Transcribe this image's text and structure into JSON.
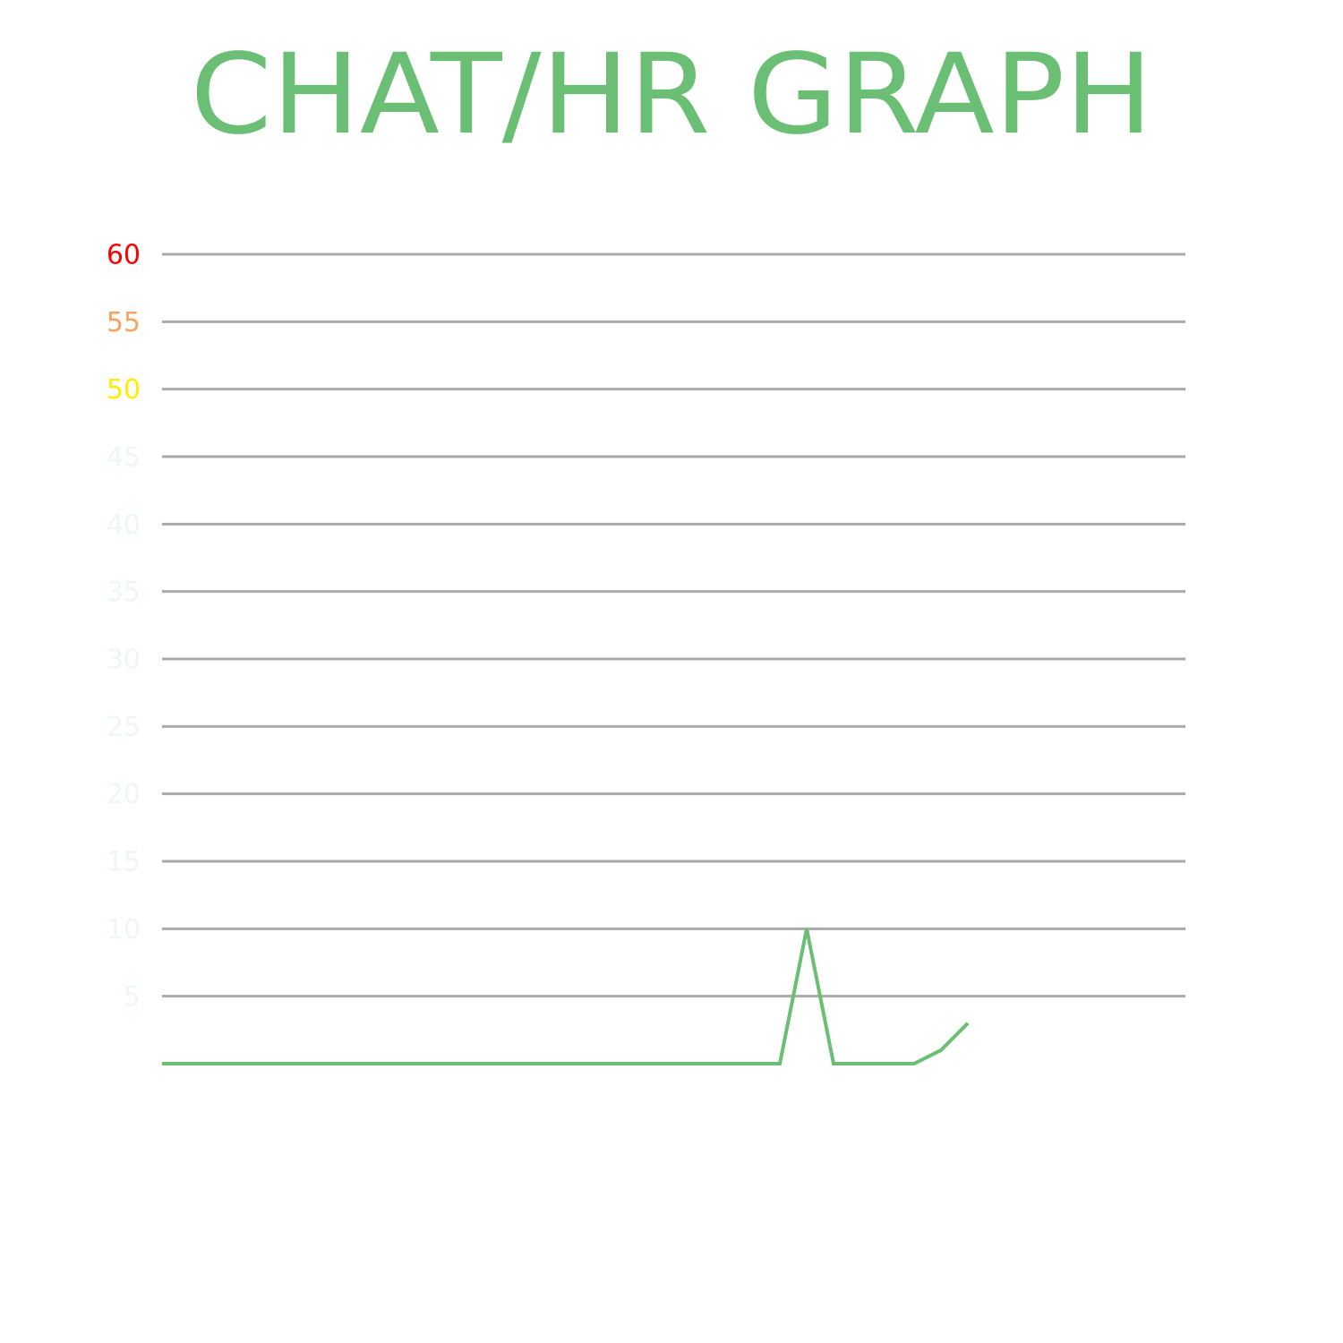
{
  "chart_data": {
    "type": "line",
    "title": "CHAT/HR GRAPH",
    "series": [
      {
        "color": "#6abf74",
        "values": [
          0,
          0,
          0,
          0,
          0,
          0,
          0,
          0,
          0,
          0,
          0,
          0,
          0,
          0,
          0,
          0,
          0,
          0,
          0,
          0,
          0,
          0,
          0,
          0,
          10,
          0,
          0,
          0,
          0,
          1,
          3
        ]
      }
    ],
    "ylim": [
      0,
      60
    ],
    "yticks": [
      5,
      10,
      15,
      20,
      25,
      30,
      35,
      40,
      45,
      50,
      55,
      60
    ],
    "ytick_colors": [
      "#eef6f6",
      "#eef6f6",
      "#eef6f6",
      "#eef6f6",
      "#eef6f6",
      "#eef6f6",
      "#eef6f6",
      "#eef6f6",
      "#eef6f6",
      "#ffee00",
      "#f4a460",
      "#ff0000"
    ],
    "grid": true,
    "grid_color": "#aaaaaa"
  }
}
